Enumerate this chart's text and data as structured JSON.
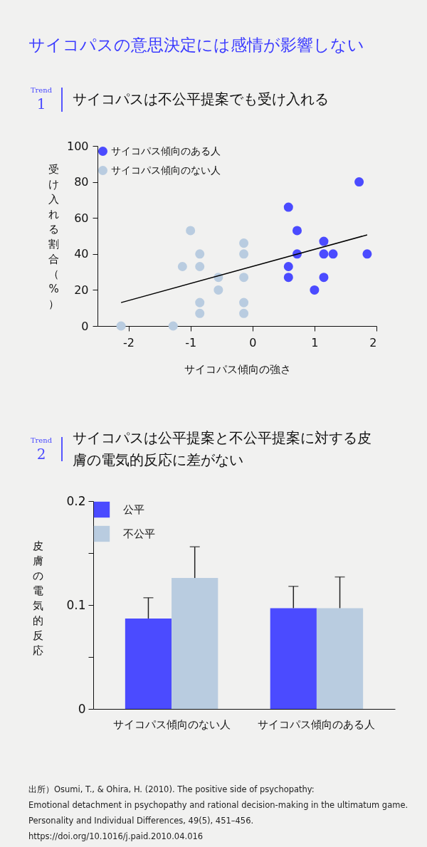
{
  "chart_data": [
    {
      "type": "scatter",
      "title": "サイコパスの意思決定には感情が影響しない",
      "subtitle": "サイコパスは不公平提案でも受け入れる",
      "annotations": [
        "Trend",
        "1"
      ],
      "xlabel": "サイコパス傾向の強さ",
      "ylabel": "受け入れる割合（%）",
      "xlim": [
        -2.5,
        2
      ],
      "xticks": [
        -2,
        -1,
        0,
        1,
        2
      ],
      "ylim": [
        0,
        100
      ],
      "yticks": [
        0,
        20,
        40,
        60,
        80,
        100
      ],
      "legend": "top left",
      "marker": "circle",
      "series": [
        {
          "name": "サイコパス傾向のある人",
          "color": "#4b4bff",
          "x": [
            0.58,
            0.72,
            0.72,
            0.58,
            0.58,
            1.15,
            1.15,
            1.3,
            1.15,
            1.0,
            1.72,
            1.85
          ],
          "values": [
            66,
            53,
            40,
            33,
            27,
            47,
            40,
            40,
            27,
            20,
            80,
            40
          ]
        },
        {
          "name": "サイコパス傾向のない人",
          "color": "#b9cce0",
          "x": [
            -2.12,
            -1.28,
            -1.0,
            -1.13,
            -0.85,
            -0.85,
            -0.85,
            -0.85,
            -0.55,
            -0.55,
            -0.14,
            -0.14,
            -0.14,
            -0.14,
            -0.14
          ],
          "values": [
            0,
            0,
            53,
            33,
            40,
            33,
            13,
            7,
            27,
            20,
            46,
            40,
            27,
            13,
            7
          ]
        },
        {
          "type": "line",
          "marker": "none",
          "color": "#000000",
          "x": [
            -2.12,
            1.85
          ],
          "values": [
            13,
            50.6
          ]
        }
      ]
    },
    {
      "type": "bar",
      "title": "サイコパスは公平提案と不公平提案に対する皮膚の電気的反応に差がない",
      "annotations": [
        "Trend",
        "2",
        "出所）Osumi, T., & Ohira, H. (2010). The positive side of psychopathy:",
        "Emotional detachment in psychopathy and rational decision-making in the ultimatum game.",
        "Personality and Individual Differences, 49(5), 451–456.　https://doi.org/10.1016/j.paid.2010.04.016"
      ],
      "ylabel": "皮膚の電気的反応",
      "categories": [
        "サイコパス傾向のない人",
        "サイコパス傾向のある人"
      ],
      "ylim": [
        0,
        0.2
      ],
      "yticks": [
        0,
        {
          "value": 0.05,
          "label": null
        },
        0.1,
        {
          "value": 0.15,
          "label": null
        },
        0.2
      ],
      "legend": "top left",
      "series": [
        {
          "name": "公平",
          "color": "#4b4bff",
          "values": [
            0.087,
            0.097
          ],
          "errors": [
            [
              0.087,
              0.107
            ],
            [
              0.097,
              0.118
            ]
          ]
        },
        {
          "name": "不公平",
          "color": "#b9cce0",
          "values": [
            0.126,
            0.097
          ],
          "errors": [
            [
              0.126,
              0.156
            ],
            [
              0.097,
              0.127
            ]
          ]
        }
      ]
    }
  ]
}
